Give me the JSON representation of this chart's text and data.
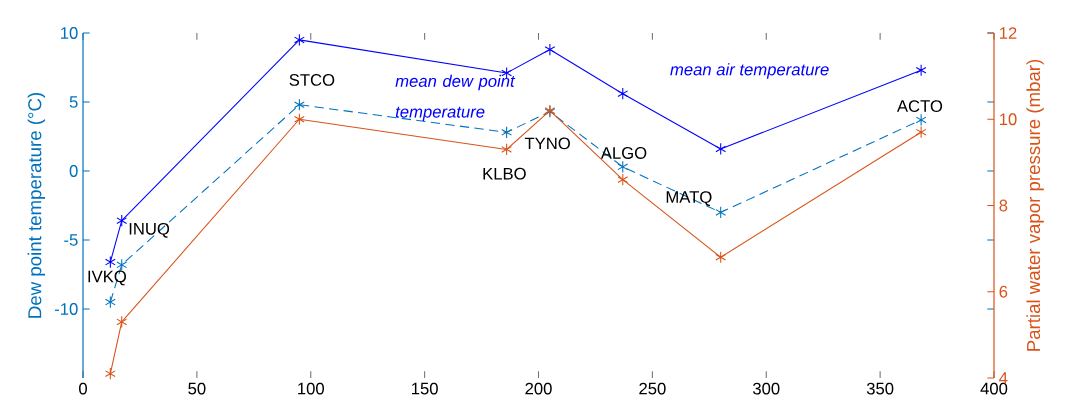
{
  "chart_data": {
    "type": "line",
    "ylabel": "Dew point temperature (°C)",
    "y2label": "Partial water vapor pressure (mbar)",
    "x": [
      12,
      17,
      95,
      186,
      205,
      237,
      280,
      368
    ],
    "series": [
      {
        "name": "mean air temperature",
        "color": "#0000ff",
        "values": [
          -6.6,
          -3.6,
          9.5,
          7.1,
          8.8,
          5.6,
          1.6,
          7.3
        ]
      },
      {
        "name": "mean dew point temperature",
        "color": "#0072bd",
        "line_style": "dashed",
        "values": [
          -9.5,
          -6.8,
          4.8,
          2.8,
          4.3,
          0.3,
          -3.0,
          3.7
        ]
      },
      {
        "color": "#d95319",
        "axis": "y2",
        "values": [
          4.1,
          5.3,
          10.0,
          9.3,
          10.2,
          8.6,
          6.8,
          9.7
        ]
      }
    ],
    "marker": "cross",
    "xlim": [
      0,
      400
    ],
    "xticks": [
      0,
      50,
      100,
      150,
      200,
      250,
      300,
      350,
      400
    ],
    "ylim": [
      -15,
      10
    ],
    "yticks": [
      -10,
      -5,
      0,
      5,
      10
    ],
    "y2lim": [
      4,
      12
    ],
    "y2ticks": [
      4,
      6,
      8,
      10,
      12
    ],
    "annotations": [
      {
        "text": "IVKQ",
        "x": 12,
        "y": -6.6
      },
      {
        "text": "INUQ",
        "x": 17,
        "y": -3.6
      },
      {
        "text": "STCO",
        "x": 95,
        "y": 4.8
      },
      {
        "text": "KLBO",
        "x": 186,
        "y": 2.8
      },
      {
        "text": "TYNO",
        "x": 205,
        "y": 4.3
      },
      {
        "text": "ALGO",
        "x": 237,
        "y": 0.3
      },
      {
        "text": "MATQ",
        "x": 280,
        "y": -3.0
      },
      {
        "text": "ACTO",
        "x": 368,
        "y": 3.7
      }
    ]
  }
}
